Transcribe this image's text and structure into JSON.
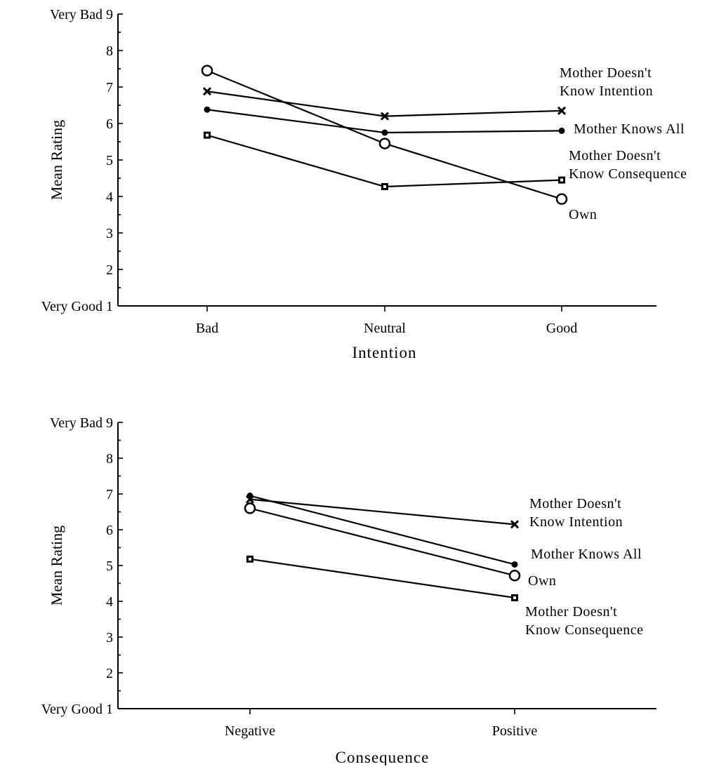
{
  "chart_data": [
    {
      "type": "line",
      "categories": [
        "Bad",
        "Neutral",
        "Good"
      ],
      "xlabel": "Intention",
      "ylabel": "Mean Rating",
      "ylim": [
        1,
        9
      ],
      "yticks": [
        1,
        2,
        3,
        4,
        5,
        6,
        7,
        8,
        9
      ],
      "y_top_anchor": "Very Bad",
      "y_bottom_anchor": "Very Good",
      "grid": false,
      "series": [
        {
          "name_lines": [
            "Mother Doesn't",
            "Know Intention"
          ],
          "marker": "cross",
          "values": [
            6.88,
            6.2,
            6.35
          ]
        },
        {
          "name_lines": [
            "Mother Knows All"
          ],
          "marker": "dot",
          "values": [
            6.38,
            5.75,
            5.8
          ]
        },
        {
          "name_lines": [
            "Mother Doesn't",
            "Know Consequence"
          ],
          "marker": "square",
          "values": [
            5.68,
            4.27,
            4.45
          ]
        },
        {
          "name_lines": [
            "Own"
          ],
          "marker": "circle",
          "values": [
            7.45,
            5.45,
            3.93
          ]
        }
      ]
    },
    {
      "type": "line",
      "categories": [
        "Negative",
        "Positive"
      ],
      "xlabel": "Consequence",
      "ylabel": "Mean Rating",
      "ylim": [
        1,
        9
      ],
      "yticks": [
        1,
        2,
        3,
        4,
        5,
        6,
        7,
        8,
        9
      ],
      "y_top_anchor": "Very Bad",
      "y_bottom_anchor": "Very Good",
      "grid": false,
      "series": [
        {
          "name_lines": [
            "Mother Doesn't",
            "Know Intention"
          ],
          "marker": "cross",
          "values": [
            6.85,
            6.15
          ]
        },
        {
          "name_lines": [
            "Mother Knows All"
          ],
          "marker": "dot",
          "values": [
            6.95,
            5.03
          ]
        },
        {
          "name_lines": [
            "Own"
          ],
          "marker": "circle",
          "values": [
            6.6,
            4.72
          ]
        },
        {
          "name_lines": [
            "Mother Doesn't",
            "Know Consequence"
          ],
          "marker": "square",
          "values": [
            5.18,
            4.1
          ]
        }
      ]
    }
  ]
}
